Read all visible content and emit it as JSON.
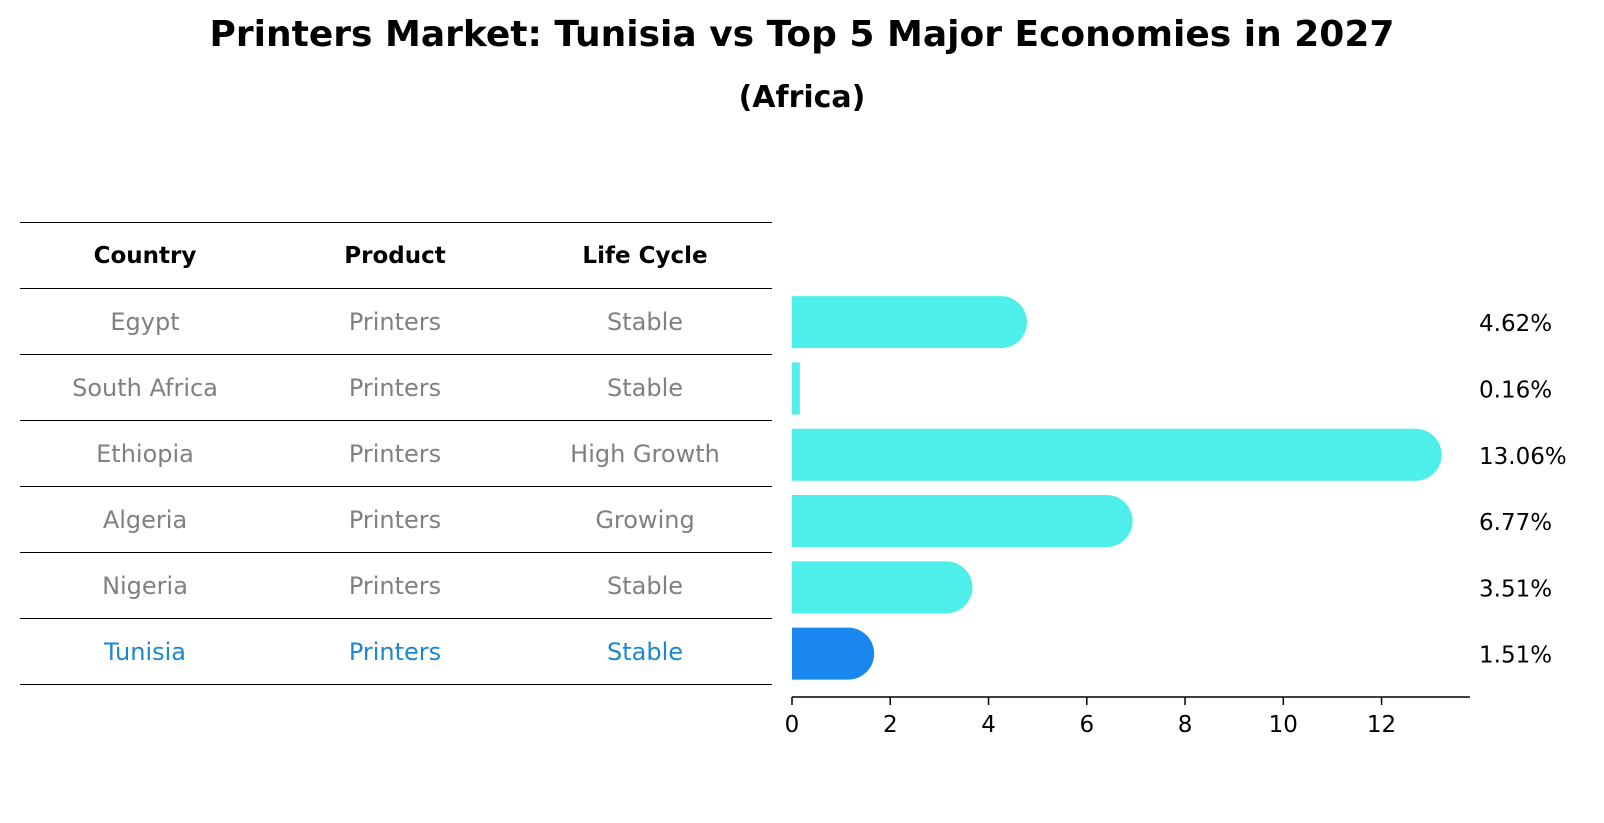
{
  "title": "Printers Market: Tunisia vs Top 5 Major Economies in 2027",
  "subtitle": "(Africa)",
  "table": {
    "headers": [
      "Country",
      "Product",
      "Life Cycle"
    ],
    "rows": [
      [
        "Egypt",
        "Printers",
        "Stable"
      ],
      [
        "South Africa",
        "Printers",
        "Stable"
      ],
      [
        "Ethiopia",
        "Printers",
        "High Growth"
      ],
      [
        "Algeria",
        "Printers",
        "Growing"
      ],
      [
        "Nigeria",
        "Printers",
        "Stable"
      ],
      [
        "Tunisia",
        "Printers",
        "Stable"
      ]
    ],
    "highlight_row": 5,
    "highlight_color": "#1b88d0"
  },
  "chart_data": {
    "type": "bar",
    "orientation": "horizontal",
    "categories": [
      "Egypt",
      "South Africa",
      "Ethiopia",
      "Algeria",
      "Nigeria",
      "Tunisia"
    ],
    "values": [
      4.62,
      0.16,
      13.06,
      6.77,
      3.51,
      1.51
    ],
    "value_labels": [
      "4.62%",
      "0.16%",
      "13.06%",
      "6.77%",
      "3.51%",
      "1.51%"
    ],
    "xticks": [
      "0",
      "2",
      "4",
      "6",
      "8",
      "10",
      "12"
    ],
    "xlim": [
      0,
      13.8
    ],
    "grid": false,
    "bar_color": "#4eeeea",
    "highlight_color": "#1a86f0",
    "highlight_index": 5
  }
}
